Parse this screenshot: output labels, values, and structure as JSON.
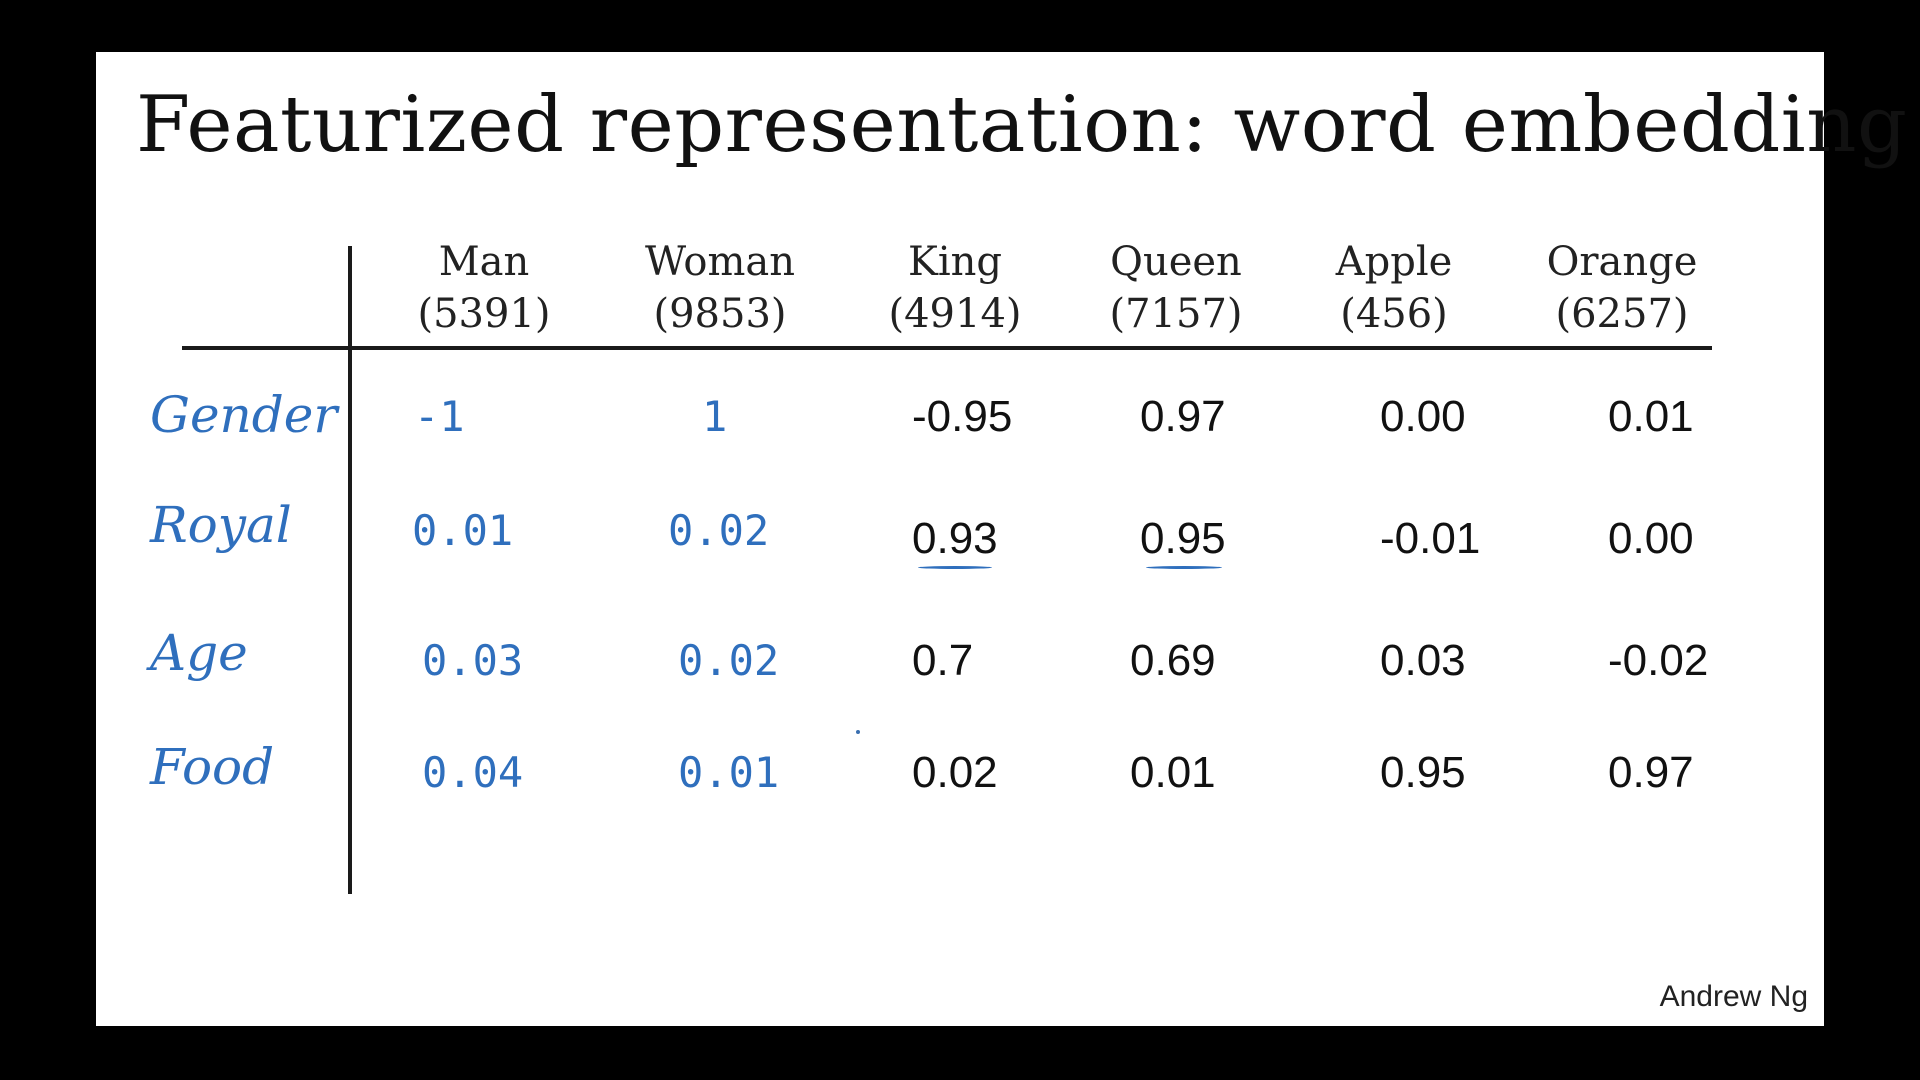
{
  "title": "Featurized representation: word embedding",
  "credit": "Andrew Ng",
  "columns": [
    {
      "word": "Man",
      "index": "(5391)"
    },
    {
      "word": "Woman",
      "index": "(9853)"
    },
    {
      "word": "King",
      "index": "(4914)"
    },
    {
      "word": "Queen",
      "index": "(7157)"
    },
    {
      "word": "Apple",
      "index": "(456)"
    },
    {
      "word": "Orange",
      "index": "(6257)"
    }
  ],
  "rows": [
    {
      "feature": "Gender",
      "values": [
        "-1",
        "1",
        "-0.95",
        "0.97",
        "0.00",
        "0.01"
      ]
    },
    {
      "feature": "Royal",
      "values": [
        "0.01",
        "0.02",
        "0.93",
        "0.95",
        "-0.01",
        "0.00"
      ]
    },
    {
      "feature": "Age",
      "values": [
        "0.03",
        "0.02",
        "0.7",
        "0.69",
        "0.03",
        "-0.02"
      ]
    },
    {
      "feature": "Food",
      "values": [
        "0.04",
        "0.01",
        "0.02",
        "0.01",
        "0.95",
        "0.97"
      ]
    }
  ],
  "colors": {
    "handwriting": "#2f6fbd",
    "ink": "#111111"
  }
}
